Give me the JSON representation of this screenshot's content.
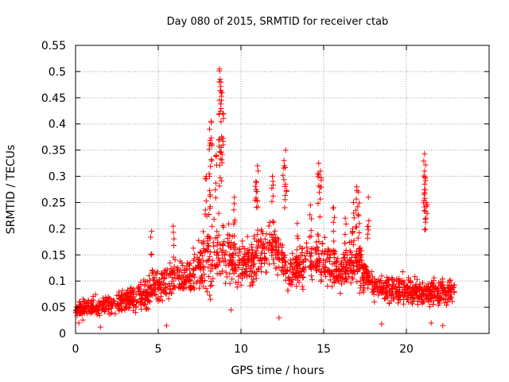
{
  "chart_data": {
    "type": "scatter",
    "title": "Day 080 of 2015, SRMTID for receiver ctab",
    "xlabel": "GPS time / hours",
    "ylabel": "SRMTID / TECUs",
    "xlim": [
      0,
      25
    ],
    "ylim": [
      0,
      0.55
    ],
    "xticks": [
      0,
      5,
      10,
      15,
      20
    ],
    "xtick_labels": [
      "0",
      "5",
      "10",
      "15",
      "20"
    ],
    "yticks": [
      0,
      0.05,
      0.1,
      0.15,
      0.2,
      0.25,
      0.3,
      0.35,
      0.4,
      0.45,
      0.5,
      0.55
    ],
    "ytick_labels": [
      "0",
      "0.05",
      "0.1",
      "0.15",
      "0.2",
      "0.25",
      "0.3",
      "0.35",
      "0.4",
      "0.45",
      "0.5",
      "0.55"
    ],
    "grid": true,
    "marker": "+",
    "color": "#ff0000",
    "x_range_data": [
      0,
      22.9
    ],
    "n_points": 1700,
    "envelope": [
      {
        "t": 0.0,
        "base": 0.045,
        "spread": 0.02
      },
      {
        "t": 2.0,
        "base": 0.055,
        "spread": 0.025
      },
      {
        "t": 4.0,
        "base": 0.07,
        "spread": 0.03
      },
      {
        "t": 5.0,
        "base": 0.09,
        "spread": 0.04
      },
      {
        "t": 6.0,
        "base": 0.11,
        "spread": 0.04
      },
      {
        "t": 7.0,
        "base": 0.11,
        "spread": 0.04
      },
      {
        "t": 8.0,
        "base": 0.15,
        "spread": 0.08
      },
      {
        "t": 9.0,
        "base": 0.16,
        "spread": 0.07
      },
      {
        "t": 10.0,
        "base": 0.13,
        "spread": 0.05
      },
      {
        "t": 11.0,
        "base": 0.15,
        "spread": 0.06
      },
      {
        "t": 12.0,
        "base": 0.17,
        "spread": 0.05
      },
      {
        "t": 13.0,
        "base": 0.11,
        "spread": 0.04
      },
      {
        "t": 14.0,
        "base": 0.14,
        "spread": 0.05
      },
      {
        "t": 15.0,
        "base": 0.14,
        "spread": 0.05
      },
      {
        "t": 16.0,
        "base": 0.12,
        "spread": 0.04
      },
      {
        "t": 17.0,
        "base": 0.14,
        "spread": 0.06
      },
      {
        "t": 18.0,
        "base": 0.09,
        "spread": 0.03
      },
      {
        "t": 19.0,
        "base": 0.085,
        "spread": 0.03
      },
      {
        "t": 20.0,
        "base": 0.085,
        "spread": 0.03
      },
      {
        "t": 21.0,
        "base": 0.075,
        "spread": 0.03
      },
      {
        "t": 22.0,
        "base": 0.08,
        "spread": 0.03
      },
      {
        "t": 22.9,
        "base": 0.08,
        "spread": 0.03
      }
    ],
    "peaks": [
      {
        "x": 8.7,
        "y": 0.505
      },
      {
        "x": 8.8,
        "y": 0.48
      },
      {
        "x": 8.85,
        "y": 0.46
      },
      {
        "x": 8.9,
        "y": 0.42
      },
      {
        "x": 8.2,
        "y": 0.405
      },
      {
        "x": 8.1,
        "y": 0.39
      },
      {
        "x": 8.7,
        "y": 0.37
      },
      {
        "x": 8.8,
        "y": 0.355
      },
      {
        "x": 8.5,
        "y": 0.34
      },
      {
        "x": 12.7,
        "y": 0.35
      },
      {
        "x": 12.6,
        "y": 0.33
      },
      {
        "x": 11.0,
        "y": 0.32
      },
      {
        "x": 14.7,
        "y": 0.325
      },
      {
        "x": 14.8,
        "y": 0.31
      },
      {
        "x": 21.1,
        "y": 0.343
      },
      {
        "x": 21.1,
        "y": 0.31
      },
      {
        "x": 21.1,
        "y": 0.285
      },
      {
        "x": 21.2,
        "y": 0.25
      },
      {
        "x": 17.0,
        "y": 0.28
      },
      {
        "x": 17.1,
        "y": 0.27
      },
      {
        "x": 17.7,
        "y": 0.26
      },
      {
        "x": 9.6,
        "y": 0.26
      },
      {
        "x": 11.9,
        "y": 0.3
      },
      {
        "x": 14.2,
        "y": 0.245
      },
      {
        "x": 15.6,
        "y": 0.24
      },
      {
        "x": 16.3,
        "y": 0.22
      },
      {
        "x": 7.9,
        "y": 0.3
      },
      {
        "x": 8.1,
        "y": 0.3
      },
      {
        "x": 10.9,
        "y": 0.29
      },
      {
        "x": 4.6,
        "y": 0.195
      },
      {
        "x": 5.9,
        "y": 0.205
      },
      {
        "x": 13.4,
        "y": 0.21
      },
      {
        "x": 16.8,
        "y": 0.25
      }
    ],
    "lows": [
      {
        "x": 5.5,
        "y": 0.015
      },
      {
        "x": 1.5,
        "y": 0.012
      },
      {
        "x": 0.2,
        "y": 0.02
      },
      {
        "x": 12.3,
        "y": 0.03
      },
      {
        "x": 18.5,
        "y": 0.018
      },
      {
        "x": 21.5,
        "y": 0.02
      },
      {
        "x": 22.2,
        "y": 0.015
      },
      {
        "x": 9.4,
        "y": 0.045
      }
    ]
  }
}
